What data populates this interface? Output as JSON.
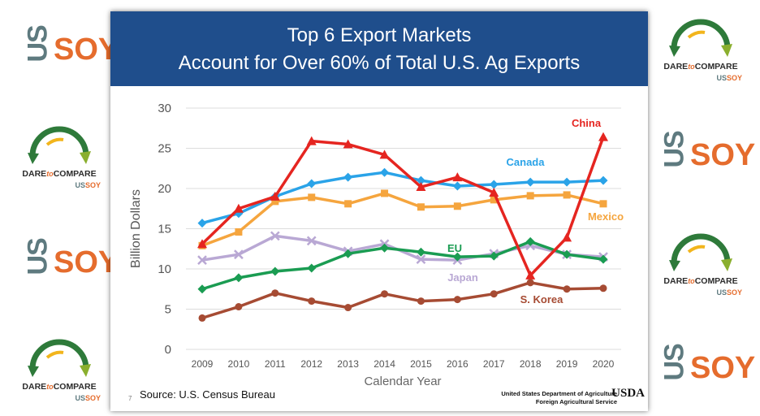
{
  "title_line1": "Top 6 Export Markets",
  "title_line2": "Account for Over 60% of Total U.S. Ag Exports",
  "source": "Source: U.S. Census Bureau",
  "page_number": "7",
  "usda_line1": "United States Department of Agriculture",
  "usda_line2": "Foreign Agricultural Service",
  "usda_logo": "USDA",
  "logos": {
    "us": "US",
    "soy": "SOY",
    "dare": "DARE",
    "to": "to",
    "compare": "COMPARE",
    "small_us": "US",
    "small_soy": "SOY"
  },
  "colors": {
    "banner": "#1f4e8c",
    "brand_orange": "#e56c2d",
    "brand_slate": "#5e7a7f",
    "brand_green": "#2e7a3a"
  },
  "chart_data": {
    "type": "line",
    "title": "Top 6 Export Markets Account for Over 60% of Total U.S. Ag Exports",
    "xlabel": "Calendar Year",
    "ylabel": "Billion Dollars",
    "ylim": [
      0,
      30
    ],
    "yticks": [
      0,
      5,
      10,
      15,
      20,
      25,
      30
    ],
    "categories": [
      "2009",
      "2010",
      "2011",
      "2012",
      "2013",
      "2014",
      "2015",
      "2016",
      "2017",
      "2018",
      "2019",
      "2020"
    ],
    "grid": "horizontal",
    "legend": "direct labels",
    "series": [
      {
        "name": "China",
        "color": "#e52520",
        "marker": "triangle",
        "values": [
          13.1,
          17.5,
          19.0,
          25.9,
          25.5,
          24.2,
          20.2,
          21.4,
          19.5,
          9.2,
          13.9,
          26.4
        ]
      },
      {
        "name": "Canada",
        "color": "#2aa3e8",
        "marker": "diamond",
        "values": [
          15.7,
          16.9,
          19.0,
          20.6,
          21.4,
          22.0,
          21.0,
          20.3,
          20.5,
          20.8,
          20.8,
          21.0
        ]
      },
      {
        "name": "Mexico",
        "color": "#f5a53e",
        "marker": "square",
        "values": [
          12.9,
          14.6,
          18.4,
          18.9,
          18.1,
          19.4,
          17.7,
          17.8,
          18.6,
          19.1,
          19.2,
          18.1
        ]
      },
      {
        "name": "EU",
        "color": "#1a9c52",
        "marker": "diamond",
        "values": [
          7.5,
          8.9,
          9.7,
          10.1,
          11.9,
          12.6,
          12.1,
          11.5,
          11.6,
          13.4,
          11.8,
          11.2
        ]
      },
      {
        "name": "Japan",
        "color": "#b9a8d4",
        "marker": "x",
        "values": [
          11.1,
          11.8,
          14.1,
          13.5,
          12.2,
          13.1,
          11.2,
          11.1,
          11.9,
          12.9,
          11.8,
          11.5
        ]
      },
      {
        "name": "S. Korea",
        "color": "#a64b33",
        "marker": "circle",
        "values": [
          3.9,
          5.3,
          7.0,
          6.0,
          5.2,
          6.9,
          6.0,
          6.2,
          6.9,
          8.3,
          7.5,
          7.6
        ]
      }
    ]
  }
}
